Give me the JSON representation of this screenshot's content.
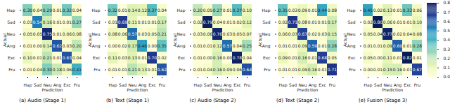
{
  "chart_data": [
    {
      "type": "heatmap",
      "title": "(a) Audio (Stage 1)",
      "x_label": "Prediction",
      "y_label": "Actual",
      "x_categories": [
        "Hap",
        "Sad",
        "Neu",
        "Ang",
        "Exc",
        "Fru"
      ],
      "y_categories": [
        "Hap",
        "Sad",
        "Neu",
        "Ang",
        "Exc",
        "Fru"
      ],
      "data_labels": true,
      "values": [
        [
          0.3,
          0.04,
          0.29,
          0.01,
          0.32,
          0.04
        ],
        [
          0.01,
          0.54,
          0.16,
          0.01,
          0.01,
          0.27
        ],
        [
          0.05,
          0.05,
          0.75,
          0.01,
          0.06,
          0.08
        ],
        [
          0.01,
          0.0,
          0.14,
          0.62,
          0.03,
          0.2
        ],
        [
          0.1,
          0.01,
          0.21,
          0.01,
          0.63,
          0.04
        ],
        [
          0.01,
          0.04,
          0.3,
          0.18,
          0.06,
          0.41
        ]
      ],
      "value_labels": [
        [
          "0.30",
          "0.04",
          "0.29",
          "0.01",
          "0.32",
          "0.04"
        ],
        [
          "0.01",
          "0.54",
          "0.16",
          "0.01",
          "0.01",
          "0.27"
        ],
        [
          "0.05",
          "0.05",
          "0.75",
          "0.01",
          "0.06",
          "0.08"
        ],
        [
          "0.01",
          "0.00",
          "0.14",
          "0.62",
          "0.03",
          "0.20"
        ],
        [
          "0.10",
          "0.01",
          "0.21",
          "0.01",
          "0.63",
          "0.04"
        ],
        [
          "0.01",
          "0.04",
          "0.30",
          "0.18",
          "0.06",
          "0.41"
        ]
      ]
    },
    {
      "type": "heatmap",
      "title": "(b) Text (Stage 1)",
      "x_label": "Prediction",
      "y_label": "Actual",
      "x_categories": [
        "Hap",
        "Sad",
        "Neu",
        "Ang",
        "Exc",
        "Fru"
      ],
      "y_categories": [
        "Hap",
        "Sad",
        "Neu",
        "Ang",
        "Exc",
        "Fru"
      ],
      "data_labels": true,
      "values": [
        [
          0.32,
          0.01,
          0.14,
          0.12,
          0.37,
          0.04
        ],
        [
          0.01,
          0.69,
          0.11,
          0.01,
          0.01,
          0.17
        ],
        [
          0.08,
          0.06,
          0.57,
          0.03,
          0.05,
          0.21
        ],
        [
          0.0,
          0.02,
          0.17,
          0.46,
          0.0,
          0.35
        ],
        [
          0.11,
          0.03,
          0.13,
          0.01,
          0.7,
          0.02
        ],
        [
          0.01,
          0.01,
          0.21,
          0.13,
          0.01,
          0.62
        ]
      ],
      "value_labels": [
        [
          "0.32",
          "0.01",
          "0.14",
          "0.12",
          "0.37",
          "0.04"
        ],
        [
          "0.01",
          "0.69",
          "0.11",
          "0.01",
          "0.01",
          "0.17"
        ],
        [
          "0.08",
          "0.06",
          "0.57",
          "0.03",
          "0.05",
          "0.21"
        ],
        [
          "0.00",
          "0.02",
          "0.17",
          "0.46",
          "0.00",
          "0.35"
        ],
        [
          "0.11",
          "0.03",
          "0.13",
          "0.01",
          "0.70",
          "0.02"
        ],
        [
          "0.01",
          "0.01",
          "0.21",
          "0.13",
          "0.01",
          "0.62"
        ]
      ]
    },
    {
      "type": "heatmap",
      "title": "(c) Audio (Stage 2)",
      "x_label": "Prediction",
      "y_label": "Actual",
      "x_categories": [
        "Hap",
        "Sad",
        "Neu",
        "Ang",
        "Exc",
        "Fru"
      ],
      "y_categories": [
        "Hap",
        "Sad",
        "Neu",
        "Ang",
        "Exc",
        "Fru"
      ],
      "data_labels": true,
      "values": [
        [
          0.2,
          0.05,
          0.27,
          0.01,
          0.37,
          0.1
        ],
        [
          0.02,
          0.79,
          0.04,
          0.01,
          0.02,
          0.12
        ],
        [
          0.03,
          0.06,
          0.76,
          0.03,
          0.05,
          0.07
        ],
        [
          0.01,
          0.01,
          0.12,
          0.57,
          0.04,
          0.25
        ],
        [
          0.01,
          0.0,
          0.16,
          0.0,
          0.78,
          0.04
        ],
        [
          0.01,
          0.04,
          0.16,
          0.09,
          0.06,
          0.64
        ]
      ],
      "value_labels": [
        [
          "0.20",
          "0.05",
          "0.27",
          "0.01",
          "0.37",
          "0.10"
        ],
        [
          "0.02",
          "0.79",
          "0.04",
          "0.01",
          "0.02",
          "0.12"
        ],
        [
          "0.03",
          "0.06",
          "0.76",
          "0.03",
          "0.05",
          "0.07"
        ],
        [
          "0.01",
          "0.01",
          "0.12",
          "0.57",
          "0.04",
          "0.25"
        ],
        [
          "0.01",
          "0.00",
          "0.16",
          "0.00",
          "0.78",
          "0.04"
        ],
        [
          "0.01",
          "0.04",
          "0.16",
          "0.09",
          "0.06",
          "0.64"
        ]
      ]
    },
    {
      "type": "heatmap",
      "title": "(d) Text (Stage 2)",
      "x_label": "Prediction",
      "y_label": "Actual",
      "x_categories": [
        "Hap",
        "Sad",
        "Neu",
        "Ang",
        "Exc",
        "Fru"
      ],
      "y_categories": [
        "Hap",
        "Sad",
        "Neu",
        "Ang",
        "Exc",
        "Fru"
      ],
      "data_labels": true,
      "values": [
        [
          0.35,
          0.03,
          0.09,
          0.01,
          0.44,
          0.08
        ],
        [
          0.02,
          0.71,
          0.08,
          0.01,
          0.01,
          0.17
        ],
        [
          0.06,
          0.07,
          0.67,
          0.02,
          0.03,
          0.15
        ],
        [
          0.01,
          0.01,
          0.09,
          0.59,
          0.01,
          0.28
        ],
        [
          0.09,
          0.01,
          0.16,
          0.01,
          0.68,
          0.05
        ],
        [
          0.01,
          0.01,
          0.09,
          0.16,
          0.01,
          0.71
        ]
      ],
      "value_labels": [
        [
          "0.35",
          "0.03",
          "0.09",
          "0.01",
          "0.44",
          "0.08"
        ],
        [
          "0.02",
          "0.71",
          "0.08",
          "0.01",
          "0.01",
          "0.17"
        ],
        [
          "0.06",
          "0.07",
          "0.67",
          "0.02",
          "0.03",
          "0.15"
        ],
        [
          "0.01",
          "0.01",
          "0.09",
          "0.59",
          "0.01",
          "0.28"
        ],
        [
          "0.09",
          "0.01",
          "0.16",
          "0.01",
          "0.68",
          "0.05"
        ],
        [
          "0.01",
          "0.01",
          "0.09",
          "0.16",
          "0.01",
          "0.71"
        ]
      ]
    },
    {
      "type": "heatmap",
      "title": "(e) Fusion (Stage 3)",
      "x_label": "Prediction",
      "y_label": "Actual",
      "x_categories": [
        "Hap",
        "Sad",
        "Neu",
        "Ang",
        "Exc",
        "Fru"
      ],
      "y_categories": [
        "Hap",
        "Sad",
        "Neu",
        "Ang",
        "Exc",
        "Fru"
      ],
      "data_labels": true,
      "values": [
        [
          0.45,
          0.02,
          0.13,
          0.01,
          0.33,
          0.06
        ],
        [
          0.02,
          0.8,
          0.06,
          0.01,
          0.01,
          0.1
        ],
        [
          0.05,
          0.04,
          0.77,
          0.02,
          0.04,
          0.08
        ],
        [
          0.01,
          0.01,
          0.09,
          0.6,
          0.01,
          0.28
        ],
        [
          0.05,
          0.0,
          0.11,
          0.01,
          0.82,
          0.01
        ],
        [
          0.0,
          0.01,
          0.15,
          0.16,
          0.01,
          0.67
        ]
      ],
      "value_labels": [
        [
          "0.45",
          "0.02",
          "0.13",
          "0.01",
          "0.33",
          "0.06"
        ],
        [
          "0.02",
          "0.80",
          "0.06",
          "0.01",
          "0.01",
          "0.10"
        ],
        [
          "0.05",
          "0.04",
          "0.77",
          "0.02",
          "0.04",
          "0.08"
        ],
        [
          "0.01",
          "0.01",
          "0.09",
          "0.60",
          "0.01",
          "0.28"
        ],
        [
          "0.05",
          "0.00",
          "0.11",
          "0.01",
          "0.82",
          "0.01"
        ],
        [
          "0.00",
          "0.01",
          "0.15",
          "0.16",
          "0.01",
          "0.67"
        ]
      ],
      "colorbar": {
        "range": [
          0,
          0.8
        ],
        "ticks": [
          {
            "value": 0,
            "label": "0.0"
          },
          0.1,
          0.2,
          0.3,
          0.4,
          0.5,
          0.6,
          0.7,
          0.8
        ]
      }
    }
  ]
}
